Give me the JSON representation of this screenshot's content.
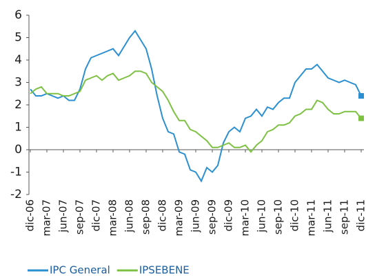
{
  "chart_data": {
    "type": "line",
    "categories": [
      "dic-06",
      null,
      null,
      "mar-07",
      null,
      null,
      "jun-07",
      null,
      null,
      "sep-07",
      null,
      null,
      "dic-07",
      null,
      null,
      "mar-08",
      null,
      null,
      "jun-08",
      null,
      null,
      "sep-08",
      null,
      null,
      "dic-08",
      null,
      null,
      "mar-09",
      null,
      null,
      "jun-09",
      null,
      null,
      "sep-09",
      null,
      null,
      "dic-09",
      null,
      null,
      "mar-10",
      null,
      null,
      "jun-10",
      null,
      null,
      "sep-10",
      null,
      null,
      "dic-10",
      null,
      null,
      "mar-11",
      null,
      null,
      "jun-11",
      null,
      null,
      "sep-11",
      null,
      null,
      "dic-11"
    ],
    "series": [
      {
        "name": "IPC General",
        "color": "#2b8fd1",
        "values": [
          2.7,
          2.4,
          2.4,
          2.5,
          2.4,
          2.3,
          2.4,
          2.2,
          2.2,
          2.7,
          3.6,
          4.1,
          4.2,
          4.3,
          4.4,
          4.5,
          4.2,
          4.6,
          5.0,
          5.3,
          4.9,
          4.5,
          3.6,
          2.4,
          1.4,
          0.8,
          0.7,
          -0.1,
          -0.2,
          -0.9,
          -1.0,
          -1.4,
          -0.8,
          -1.0,
          -0.7,
          0.3,
          0.8,
          1.0,
          0.8,
          1.4,
          1.5,
          1.8,
          1.5,
          1.9,
          1.8,
          2.1,
          2.3,
          2.3,
          3.0,
          3.3,
          3.6,
          3.6,
          3.8,
          3.5,
          3.2,
          3.1,
          3.0,
          3.1,
          3.0,
          2.9,
          2.4
        ]
      },
      {
        "name": "IPSEBENE",
        "color": "#7dc142",
        "values": [
          2.5,
          2.7,
          2.8,
          2.5,
          2.5,
          2.5,
          2.4,
          2.4,
          2.5,
          2.6,
          3.1,
          3.2,
          3.3,
          3.1,
          3.3,
          3.4,
          3.1,
          3.2,
          3.3,
          3.5,
          3.5,
          3.4,
          3.0,
          2.8,
          2.6,
          2.2,
          1.7,
          1.3,
          1.3,
          0.9,
          0.8,
          0.6,
          0.4,
          0.1,
          0.1,
          0.2,
          0.3,
          0.1,
          0.1,
          0.2,
          -0.1,
          0.2,
          0.4,
          0.8,
          0.9,
          1.1,
          1.1,
          1.2,
          1.5,
          1.6,
          1.8,
          1.8,
          2.2,
          2.1,
          1.8,
          1.6,
          1.6,
          1.7,
          1.7,
          1.7,
          1.4
        ]
      }
    ],
    "ylim": [
      -2,
      6
    ],
    "yticks": [
      -2,
      -1,
      0,
      1,
      2,
      3,
      4,
      5,
      6
    ],
    "grid": false,
    "legend": "bottom"
  }
}
